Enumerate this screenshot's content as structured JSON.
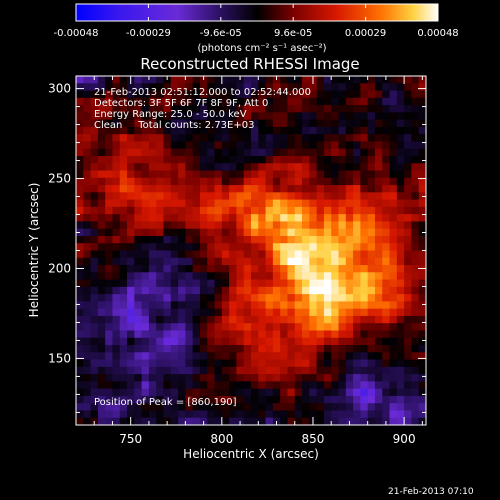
{
  "chart_data": {
    "type": "heatmap",
    "title": "Reconstructed RHESSI Image",
    "xlabel": "Heliocentric X (arcsec)",
    "ylabel": "Heliocentric Y (arcsec)",
    "xlim": [
      720,
      912
    ],
    "ylim": [
      113,
      307
    ],
    "x_ticks": [
      750,
      800,
      850,
      900
    ],
    "y_ticks": [
      150,
      200,
      250,
      300
    ],
    "colorbar": {
      "label": "(photons cm⁻² s⁻¹ asec⁻²)",
      "range": [
        -0.00048,
        0.00048
      ],
      "ticks": [
        "-0.00048",
        "-0.00029",
        "-9.6e-05",
        "9.6e-05",
        "0.00029",
        "0.00048"
      ],
      "colormap": [
        "#0000ff",
        "#6a2ad8",
        "#1a0a40",
        "#000000",
        "#8a0000",
        "#e02000",
        "#ff8000",
        "#ffd040",
        "#ffffff"
      ]
    },
    "annotations": [
      "21-Feb-2013 02:51:12.000 to 02:52:44.000",
      "Detectors: 3F 5F 6F 7F 8F 9F, Att 0",
      "Energy Range: 25.0 - 50.0 keV",
      "Clean     Total counts: 2.73E+03"
    ],
    "peak_text": "Position of Peak = [860,190]",
    "peak": [
      860,
      190
    ],
    "grid": false
  },
  "footer": {
    "timestamp": "21-Feb-2013 07:10"
  }
}
